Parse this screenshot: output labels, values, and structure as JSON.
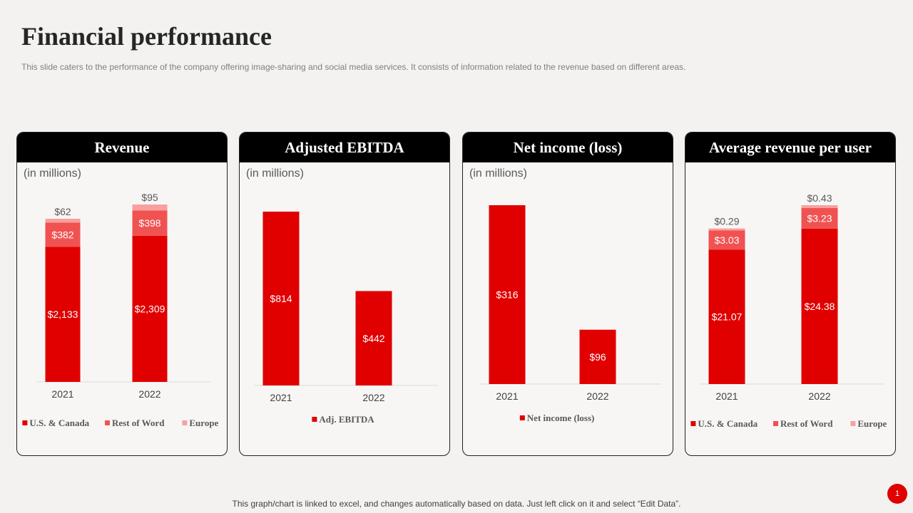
{
  "slide": {
    "title": "Financial performance",
    "subtitle": "This slide caters to the performance of the company offering image-sharing and social media services. It consists of information related to the revenue based on different areas.",
    "footnote": "This graph/chart is linked to excel,  and changes automatically based on data. Just left click on it and select “Edit Data”.",
    "page_number": "1"
  },
  "colors": {
    "dark_red": "#e00000",
    "mid_red": "#f05252",
    "light_red": "#f8a0a0",
    "label_dark": "#595959"
  },
  "chart_data": [
    {
      "type": "bar",
      "title": "Revenue",
      "unit_label": "(in millions)",
      "stacked": true,
      "categories": [
        "2021",
        "2022"
      ],
      "series": [
        {
          "name": "U.S. & Canada",
          "values": [
            2133,
            2309
          ],
          "labels": [
            "$2,133",
            "$2,309"
          ]
        },
        {
          "name": "Rest of Word",
          "values": [
            382,
            398
          ],
          "labels": [
            "$382",
            "$398"
          ]
        },
        {
          "name": "Europe",
          "values": [
            62,
            95
          ],
          "labels": [
            "$62",
            "$95"
          ]
        }
      ]
    },
    {
      "type": "bar",
      "title": "Adjusted EBITDA",
      "unit_label": "(in millions)",
      "stacked": false,
      "categories": [
        "2021",
        "2022"
      ],
      "series": [
        {
          "name": "Adj. EBITDA",
          "values": [
            814,
            442
          ],
          "labels": [
            "$814",
            "$442"
          ]
        }
      ]
    },
    {
      "type": "bar",
      "title": "Net income (loss)",
      "unit_label": "(in millions)",
      "stacked": false,
      "categories": [
        "2021",
        "2022"
      ],
      "series": [
        {
          "name": "Net income (loss)",
          "values": [
            316,
            96
          ],
          "labels": [
            "$316",
            "$96"
          ]
        }
      ]
    },
    {
      "type": "bar",
      "title": "Average revenue per user",
      "unit_label": "",
      "stacked": true,
      "categories": [
        "2021",
        "2022"
      ],
      "series": [
        {
          "name": "U.S. & Canada",
          "values": [
            21.07,
            24.38
          ],
          "labels": [
            "$21.07",
            "$24.38"
          ]
        },
        {
          "name": "Rest of Word",
          "values": [
            3.03,
            3.23
          ],
          "labels": [
            "$3.03",
            "$3.23"
          ]
        },
        {
          "name": "Europe",
          "values": [
            0.29,
            0.43
          ],
          "labels": [
            "$0.29",
            "$0.43"
          ]
        }
      ]
    }
  ]
}
